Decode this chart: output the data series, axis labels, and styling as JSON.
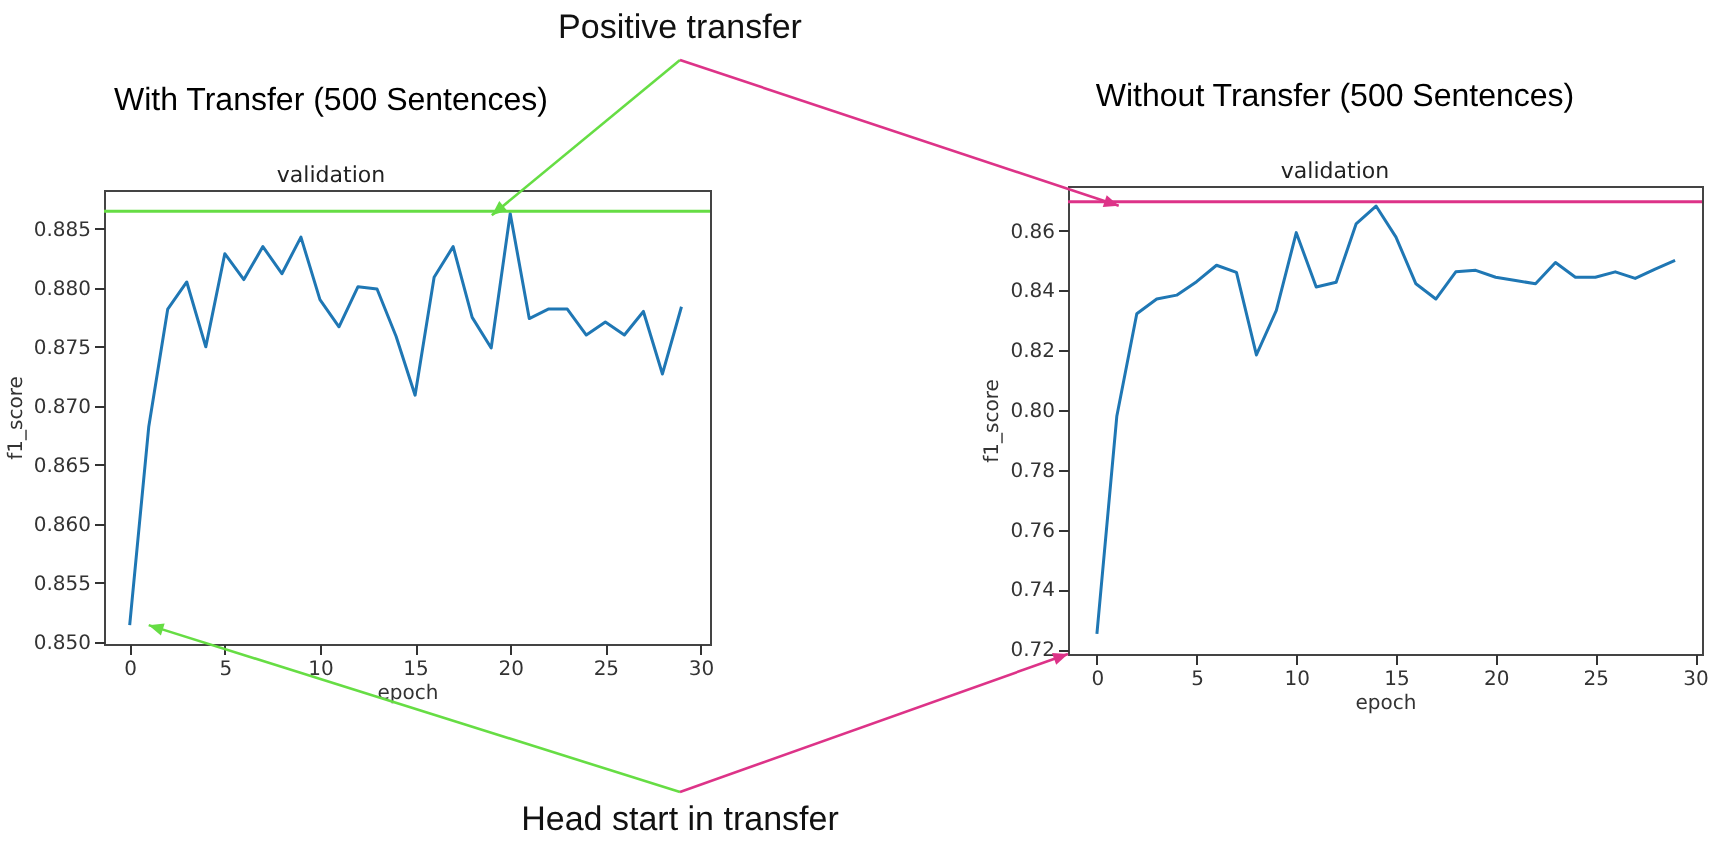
{
  "chart_data": [
    {
      "type": "line",
      "title": "With Transfer (500 Sentences)",
      "subtitle": "validation",
      "xlabel": "epoch",
      "ylabel": "f1_score",
      "annotations": [
        "Positive transfer",
        "Head start in transfer"
      ],
      "x": [
        0,
        1,
        2,
        3,
        4,
        5,
        6,
        7,
        8,
        9,
        10,
        11,
        12,
        13,
        14,
        15,
        16,
        17,
        18,
        19,
        20,
        21,
        22,
        23,
        24,
        25,
        26,
        27,
        28,
        29
      ],
      "series": [
        {
          "color": "#1f77b4",
          "values": [
            0.8514,
            0.8682,
            0.8782,
            0.8805,
            0.875,
            0.8829,
            0.8807,
            0.8835,
            0.8812,
            0.8843,
            0.879,
            0.8767,
            0.8801,
            0.8799,
            0.8759,
            0.8709,
            0.8809,
            0.8835,
            0.8775,
            0.8749,
            0.8863,
            0.8774,
            0.8782,
            0.8782,
            0.876,
            0.8771,
            0.876,
            0.878,
            0.8727,
            0.8784
          ]
        }
      ],
      "ref_lines": [
        {
          "axis": "y",
          "value": 0.8865,
          "color": "#66dd44"
        }
      ],
      "xlim": [
        -1.35,
        30.5
      ],
      "xticks": [
        0,
        5,
        10,
        15,
        20,
        25,
        30
      ],
      "ylim": [
        0.8498,
        0.8883
      ],
      "yticks": [
        {
          "value": 0.85,
          "label": "0.850"
        },
        0.855,
        {
          "value": 0.86,
          "label": "0.860"
        },
        0.865,
        {
          "value": 0.87,
          "label": "0.870"
        },
        0.875,
        {
          "value": 0.88,
          "label": "0.880"
        },
        0.885
      ],
      "grid": false,
      "marker": "none",
      "line_style": "solid"
    },
    {
      "type": "line",
      "title": "Without Transfer (500 Sentences)",
      "subtitle": "validation",
      "xlabel": "epoch",
      "ylabel": "f1_score",
      "x": [
        0,
        1,
        2,
        3,
        4,
        5,
        6,
        7,
        8,
        9,
        10,
        11,
        12,
        13,
        14,
        15,
        16,
        17,
        18,
        19,
        20,
        21,
        22,
        23,
        24,
        25,
        26,
        27,
        28,
        29
      ],
      "series": [
        {
          "color": "#1f77b4",
          "values": [
            0.7251,
            0.798,
            0.8322,
            0.8371,
            0.8384,
            0.8429,
            0.8484,
            0.846,
            0.8184,
            0.8333,
            0.8593,
            0.8411,
            0.8427,
            0.8622,
            0.8682,
            0.8578,
            0.8422,
            0.8371,
            0.8462,
            0.8467,
            0.8444,
            0.8433,
            0.8422,
            0.8493,
            0.8444,
            0.8444,
            0.8462,
            0.844,
            0.8471,
            0.85
          ]
        }
      ],
      "ref_lines": [
        {
          "axis": "y",
          "value": 0.8696,
          "color": "#dd3388"
        }
      ],
      "xlim": [
        -1.45,
        30.35
      ],
      "xticks": [
        0,
        5,
        10,
        15,
        20,
        25,
        30
      ],
      "ylim": [
        0.7184,
        0.8749
      ],
      "yticks": [
        0.72,
        0.74,
        0.76,
        0.78,
        {
          "value": 0.8,
          "label": "0.80"
        },
        0.82,
        0.84,
        0.86
      ],
      "grid": false,
      "marker": "none",
      "line_style": "solid"
    }
  ]
}
